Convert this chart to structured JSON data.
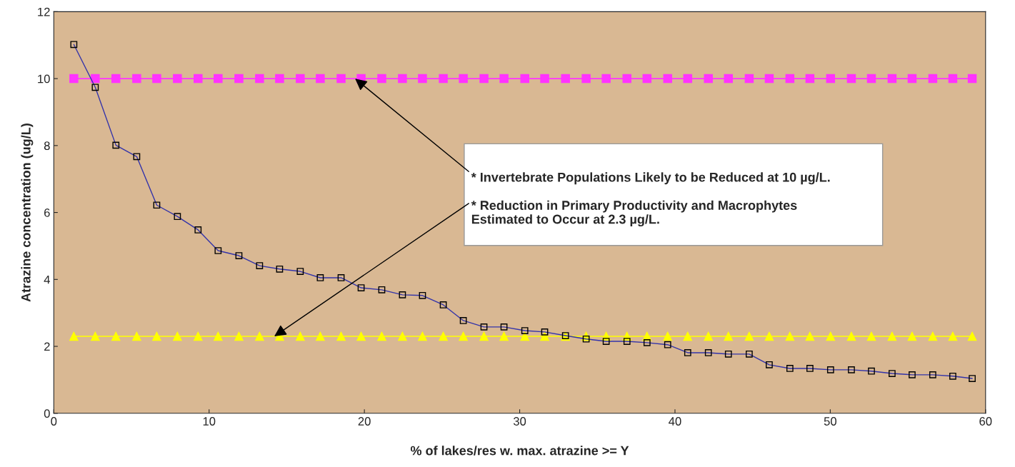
{
  "chart_data": {
    "type": "line",
    "xlabel": "% of lakes/res w. max. atrazine >= Y",
    "ylabel": "Atrazine concentration (ug/L)",
    "x": [
      1.29,
      2.67,
      4.0,
      5.34,
      6.63,
      7.96,
      9.29,
      10.58,
      11.92,
      13.25,
      14.54,
      15.87,
      17.16,
      18.5,
      19.79,
      21.12,
      22.45,
      23.74,
      25.08,
      26.37,
      27.7,
      28.99,
      30.33,
      31.61,
      32.95,
      34.28,
      35.57,
      36.91,
      38.2,
      39.53,
      40.82,
      42.15,
      43.44,
      44.78,
      46.07,
      47.4,
      48.69,
      50.02,
      51.36,
      52.65,
      53.98,
      55.27,
      56.6,
      57.89,
      59.14
    ],
    "series": [
      {
        "color": "#3333aa",
        "marker": "square",
        "values": [
          11.02,
          9.74,
          8.01,
          7.67,
          6.22,
          5.88,
          5.48,
          4.86,
          4.71,
          4.41,
          4.31,
          4.24,
          4.05,
          4.05,
          3.75,
          3.69,
          3.54,
          3.52,
          3.24,
          2.77,
          2.58,
          2.58,
          2.47,
          2.43,
          2.32,
          2.22,
          2.15,
          2.15,
          2.11,
          2.05,
          1.81,
          1.81,
          1.77,
          1.77,
          1.45,
          1.34,
          1.34,
          1.3,
          1.3,
          1.26,
          1.19,
          1.15,
          1.15,
          1.11,
          1.04
        ]
      },
      {
        "color": "#ff33ff",
        "marker": "square",
        "values": [
          10,
          10,
          10,
          10,
          10,
          10,
          10,
          10,
          10,
          10,
          10,
          10,
          10,
          10,
          10,
          10,
          10,
          10,
          10,
          10,
          10,
          10,
          10,
          10,
          10,
          10,
          10,
          10,
          10,
          10,
          10,
          10,
          10,
          10,
          10,
          10,
          10,
          10,
          10,
          10,
          10,
          10,
          10,
          10,
          10
        ]
      },
      {
        "color": "#ffff00",
        "marker": "triangle",
        "values": [
          2.3,
          2.3,
          2.3,
          2.3,
          2.3,
          2.3,
          2.3,
          2.3,
          2.3,
          2.3,
          2.3,
          2.3,
          2.3,
          2.3,
          2.3,
          2.3,
          2.3,
          2.3,
          2.3,
          2.3,
          2.3,
          2.3,
          2.3,
          2.3,
          2.3,
          2.3,
          2.3,
          2.3,
          2.3,
          2.3,
          2.3,
          2.3,
          2.3,
          2.3,
          2.3,
          2.3,
          2.3,
          2.3,
          2.3,
          2.3,
          2.3,
          2.3,
          2.3,
          2.3,
          2.3
        ]
      }
    ],
    "annotations": [
      {
        "text": "* Invertebrate Populations Likely to be Reduced at 10 µg/L.",
        "x": 19.4,
        "y": 10
      },
      {
        "text": "* Reduction in Primary Productivity and Macrophytes\nEstimated to Occur at 2.3 µg/L.",
        "x": 14.2,
        "y": 2.3
      }
    ],
    "xlim": [
      0,
      60
    ],
    "xticks": [
      0,
      10,
      20,
      30,
      40,
      50,
      60
    ],
    "ylim": [
      0,
      12
    ],
    "yticks": [
      0,
      2,
      4,
      6,
      8,
      10,
      12
    ],
    "grid": false,
    "legend": false
  }
}
